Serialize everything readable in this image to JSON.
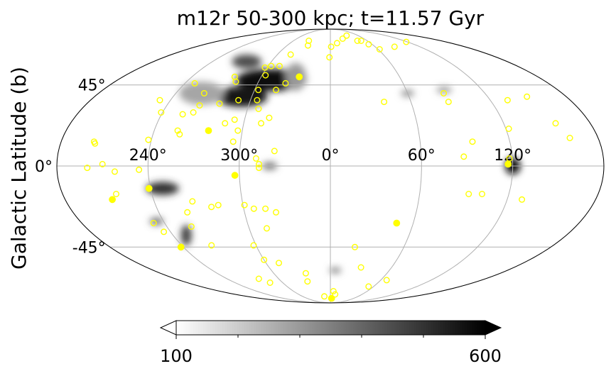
{
  "chart_data": {
    "type": "scatter",
    "projection": "mollweide",
    "title": "m12r 50-300 kpc; t=11.57 Gyr",
    "ylabel": "Galactic Latitude (b)",
    "xlabel": "",
    "lon_ticks": [
      {
        "lon": 120,
        "label": "120°"
      },
      {
        "lon": 60,
        "label": "60°"
      },
      {
        "lon": 0,
        "label": "0°"
      },
      {
        "lon": -60,
        "label": "300°"
      },
      {
        "lon": -120,
        "label": "240°"
      }
    ],
    "lat_ticks": [
      {
        "lat": 45,
        "label": "45°"
      },
      {
        "lat": 0,
        "label": "0°"
      },
      {
        "lat": -45,
        "label": "-45°"
      }
    ],
    "grid": true,
    "colorbar": {
      "min": 100,
      "max": 600,
      "tick_labels": [
        "100",
        "600"
      ],
      "minor_ticks": [
        200,
        300,
        400,
        500
      ],
      "extend": "both",
      "cmap": "greys"
    },
    "density_blobs": [
      {
        "lon": -50,
        "lat": 48,
        "w": 60,
        "h": 14,
        "v": 0.95
      },
      {
        "lon": -68,
        "lat": 38,
        "w": 40,
        "h": 12,
        "v": 0.9
      },
      {
        "lon": -85,
        "lat": 60,
        "w": 30,
        "h": 10,
        "v": 0.7
      },
      {
        "lon": -30,
        "lat": 50,
        "w": 18,
        "h": 18,
        "v": 0.4
      },
      {
        "lon": -100,
        "lat": 40,
        "w": 35,
        "h": 14,
        "v": 0.35
      },
      {
        "lon": 120,
        "lat": 0,
        "w": 10,
        "h": 9,
        "v": 0.95
      },
      {
        "lon": -112,
        "lat": -12,
        "w": 22,
        "h": 7,
        "v": 0.8
      },
      {
        "lon": -110,
        "lat": -38,
        "w": 8,
        "h": 12,
        "v": 0.75
      },
      {
        "lon": -125,
        "lat": -30,
        "w": 10,
        "h": 4,
        "v": 0.6
      },
      {
        "lon": -40,
        "lat": 0,
        "w": 10,
        "h": 4,
        "v": 0.55
      },
      {
        "lon": 5,
        "lat": -60,
        "w": 12,
        "h": 4,
        "v": 0.5
      },
      {
        "lon": 60,
        "lat": 40,
        "w": 10,
        "h": 4,
        "v": 0.45
      },
      {
        "lon": 90,
        "lat": 42,
        "w": 12,
        "h": 4,
        "v": 0.4
      }
    ],
    "series": [
      {
        "marker": "open-circle",
        "color": "#ffff00",
        "points": [
          [
            86,
            71
          ],
          [
            62,
            69
          ],
          [
            55,
            73
          ],
          [
            50,
            76
          ],
          [
            44,
            76
          ],
          [
            35,
            81
          ],
          [
            22,
            78
          ],
          [
            10,
            74
          ],
          [
            1,
            71
          ],
          [
            -35,
            76
          ],
          [
            -31,
            72
          ],
          [
            -45,
            65
          ],
          [
            -49,
            57
          ],
          [
            -57,
            57
          ],
          [
            -62,
            56
          ],
          [
            -83,
            50
          ],
          [
            -79,
            47
          ],
          [
            -57,
            51
          ],
          [
            -37,
            46
          ],
          [
            -43,
            42
          ],
          [
            -57,
            42
          ],
          [
            -82,
            34
          ],
          [
            -98,
            29
          ],
          [
            -96,
            33
          ],
          [
            -98,
            40
          ],
          [
            -55,
            36
          ],
          [
            -69,
            36
          ],
          [
            -112,
            46
          ],
          [
            -128,
            36
          ],
          [
            -121,
            29
          ],
          [
            -105,
            28
          ],
          [
            -102,
            17
          ],
          [
            -104,
            19
          ],
          [
            -122,
            14
          ],
          [
            -158,
            13
          ],
          [
            -157,
            12
          ],
          [
            -73,
            23
          ],
          [
            -67,
            25
          ],
          [
            -52,
            31
          ],
          [
            -63,
            19
          ],
          [
            -65,
            13
          ],
          [
            -48,
            23
          ],
          [
            -43,
            26
          ],
          [
            -37,
            8
          ],
          [
            -47,
            1
          ],
          [
            -49,
            4
          ],
          [
            -47,
            -1
          ],
          [
            -160,
            -1
          ],
          [
            -150,
            1
          ],
          [
            -142,
            -3
          ],
          [
            -144,
            -15
          ],
          [
            -126,
            -2
          ],
          [
            -128,
            -31
          ],
          [
            -125,
            -36
          ],
          [
            -102,
            -33
          ],
          [
            -100,
            -25
          ],
          [
            -94,
            -19
          ],
          [
            -82,
            -22
          ],
          [
            -77,
            -21
          ],
          [
            -53,
            -23
          ],
          [
            -59,
            -21
          ],
          [
            -45,
            -23
          ],
          [
            -38,
            -25
          ],
          [
            -47,
            -34
          ],
          [
            -96,
            -44
          ],
          [
            -62,
            -44
          ],
          [
            -60,
            -53
          ],
          [
            -48,
            -55
          ],
          [
            -83,
            -66
          ],
          [
            -76,
            -69
          ],
          [
            -26,
            -62
          ],
          [
            -28,
            -68
          ],
          [
            -13,
            -81
          ],
          [
            5,
            -76
          ],
          [
            9,
            -79
          ],
          [
            30,
            -58
          ],
          [
            53,
            -72
          ],
          [
            67,
            -67
          ],
          [
            20,
            -45
          ],
          [
            102,
            -15
          ],
          [
            130,
            -18
          ],
          [
            118,
            4
          ],
          [
            122,
            20
          ],
          [
            133,
            36
          ],
          [
            150,
            38
          ],
          [
            156,
            23
          ],
          [
            161,
            15
          ],
          [
            95,
            13
          ],
          [
            88,
            35
          ],
          [
            88,
            40
          ],
          [
            93,
            -15
          ],
          [
            88,
            5
          ],
          [
            40,
            35
          ],
          [
            -1,
            63
          ],
          [
            118,
            75
          ]
        ]
      },
      {
        "marker": "filled-circle",
        "color": "#ffff00",
        "points": [
          [
            -27,
            50
          ],
          [
            -83,
            19
          ],
          [
            -63,
            -5
          ],
          [
            -121,
            -12
          ],
          [
            -148,
            -18
          ],
          [
            -122,
            -45
          ],
          [
            48,
            -31
          ],
          [
            117,
            1
          ],
          [
            3,
            -83
          ]
        ]
      }
    ]
  }
}
